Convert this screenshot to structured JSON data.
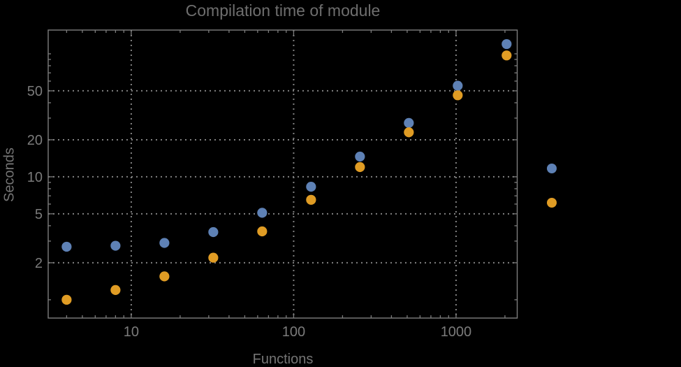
{
  "chart_data": {
    "type": "scatter",
    "title": "Compilation time of module",
    "xlabel": "Functions",
    "ylabel": "Seconds",
    "x_scale": "log",
    "y_scale": "log",
    "x_range": [
      3.08,
      2380
    ],
    "y_range": [
      0.71,
      156
    ],
    "x": [
      4,
      8,
      16,
      32,
      64,
      128,
      256,
      512,
      1024,
      2048
    ],
    "series": [
      {
        "name": "series-blue",
        "color": "#5e81b5",
        "values": [
          2.7,
          2.75,
          2.9,
          3.55,
          5.1,
          8.3,
          14.6,
          27.4,
          55,
          120
        ]
      },
      {
        "name": "series-orange",
        "color": "#e09c24",
        "values": [
          1.0,
          1.2,
          1.55,
          2.2,
          3.6,
          6.5,
          12,
          23,
          46,
          97
        ]
      }
    ],
    "x_axis": {
      "major_ticks": [
        10,
        100,
        1000
      ],
      "major_labels": [
        "10",
        "100",
        "1000"
      ],
      "minor_ticks": [
        4,
        5,
        6,
        7,
        8,
        9,
        20,
        30,
        40,
        50,
        60,
        70,
        80,
        90,
        200,
        300,
        400,
        500,
        600,
        700,
        800,
        900,
        2000
      ]
    },
    "y_axis": {
      "major_ticks": [
        2,
        5,
        10,
        20,
        50
      ],
      "major_labels": [
        "2",
        "5",
        "10",
        "20",
        "50"
      ],
      "minor_ticks": [
        1,
        3,
        4,
        6,
        7,
        8,
        9,
        30,
        40,
        60,
        70,
        80,
        90,
        100
      ]
    },
    "grid": {
      "style": "dotted",
      "at": "major-ticks",
      "color": "#828282"
    },
    "legend": {
      "position": "right-outside",
      "entries": [
        {
          "marker_color": "#5e81b5"
        },
        {
          "marker_color": "#e09c24"
        }
      ]
    },
    "colors": {
      "background": "#000000",
      "frame": "#7d7d7d",
      "tick": "#7d7d7d",
      "title_text": "#6e6e6e",
      "axis_label_text": "#757575",
      "tick_label_text": "#7b7b7b"
    }
  }
}
